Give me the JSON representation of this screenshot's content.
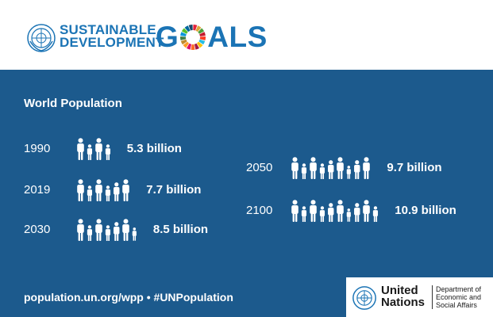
{
  "header": {
    "line1": "SUSTAINABLE",
    "line2": "DEVELOPMENT",
    "goals_before": "G",
    "goals_after": "ALS",
    "logo_icon": "un-emblem-icon",
    "wheel_colors": [
      "#e5243b",
      "#dda63a",
      "#4c9f38",
      "#c5192d",
      "#ff3a21",
      "#26bde2",
      "#fcc30b",
      "#a21942",
      "#fd6925",
      "#dd1367",
      "#fd9d24",
      "#bf8b2e",
      "#3f7e44",
      "#0a97d9",
      "#56c02b",
      "#00689d",
      "#19486a"
    ]
  },
  "section": {
    "title": "World Population"
  },
  "rows": [
    {
      "year": "1990",
      "value": "5.3 billion",
      "people": 4
    },
    {
      "year": "2019",
      "value": "7.7 billion",
      "people": 6
    },
    {
      "year": "2030",
      "value": "8.5 billion",
      "people": 7
    },
    {
      "year": "2050",
      "value": "9.7 billion",
      "people": 9
    },
    {
      "year": "2100",
      "value": "10.9 billion",
      "people": 10
    }
  ],
  "footer": {
    "text": "population.un.org/wpp  •  #UNPopulation",
    "org_line1": "United",
    "org_line2": "Nations",
    "dept_line1": "Department of",
    "dept_line2": "Economic and",
    "dept_line3": "Social Affairs"
  },
  "colors": {
    "brand_blue": "#1b74b5",
    "panel_blue": "#1c5a8d",
    "text_white": "#ffffff"
  }
}
